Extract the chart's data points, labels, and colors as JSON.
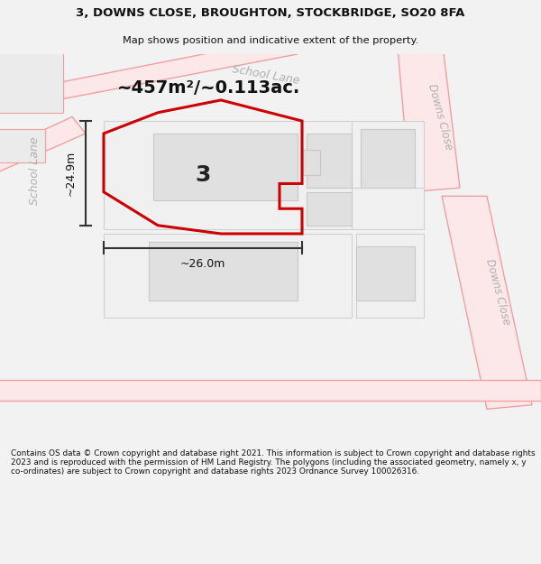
{
  "title_line1": "3, DOWNS CLOSE, BROUGHTON, STOCKBRIDGE, SO20 8FA",
  "title_line2": "Map shows position and indicative extent of the property.",
  "area_text": "~457m²/~0.113ac.",
  "label_number": "3",
  "dim_height": "~24.9m",
  "dim_width": "~26.0m",
  "footer_text": "Contains OS data © Crown copyright and database right 2021. This information is subject to Crown copyright and database rights 2023 and is reproduced with the permission of HM Land Registry. The polygons (including the associated geometry, namely x, y co-ordinates) are subject to Crown copyright and database rights 2023 Ordnance Survey 100026316.",
  "bg_color": "#f2f2f2",
  "map_bg": "#ffffff",
  "road_fill": "#fce8e8",
  "road_edge": "#f0a0a0",
  "building_fill": "#e0e0e0",
  "building_edge": "#c8c8c8",
  "plot_color": "#cc0000",
  "dim_color": "#333333",
  "street_color": "#b0b0b0",
  "text_color": "#111111"
}
